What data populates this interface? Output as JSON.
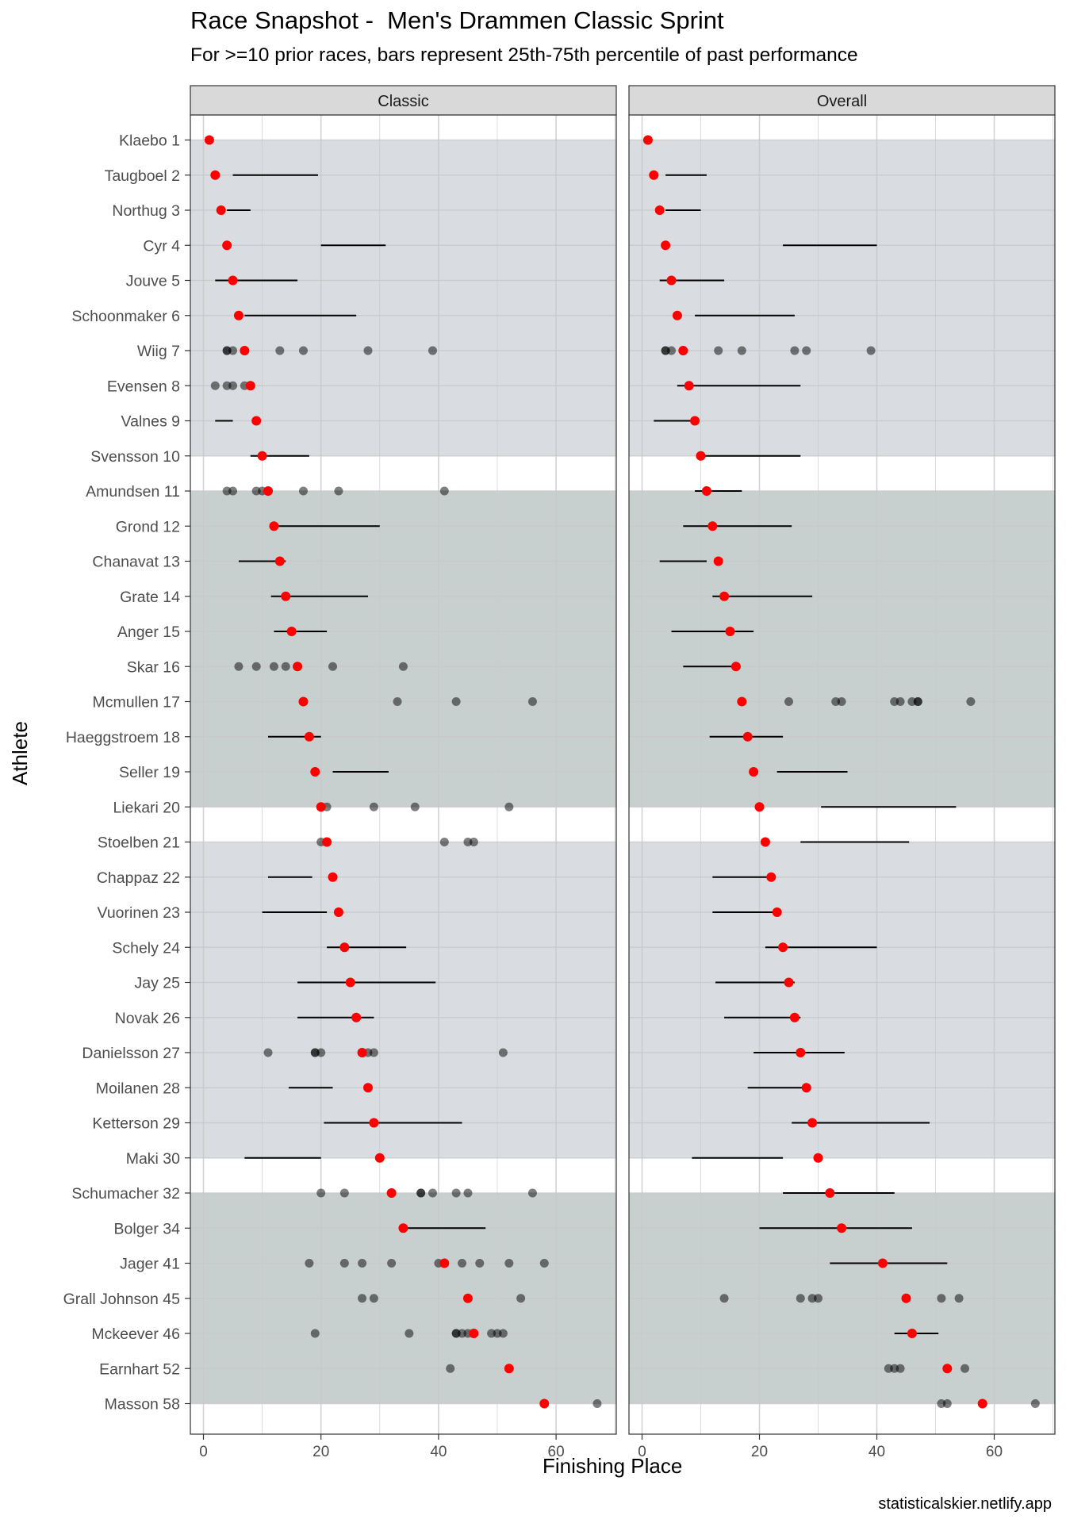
{
  "title": "Race Snapshot -  Men's Drammen Classic Sprint",
  "subtitle": "For >=10 prior races, bars represent 25th-75th percentile of past performance",
  "caption": "statisticalskier.netlify.app",
  "chart_data": {
    "type": "scatter",
    "title": "Race Snapshot -  Men's Drammen Classic Sprint",
    "subtitle": "For >=10 prior races, bars represent 25th-75th percentile of past performance",
    "xlabel": "Finishing Place",
    "ylabel": "Athlete",
    "xlim": [
      -2,
      71
    ],
    "x_ticks": [
      0,
      20,
      40,
      60
    ],
    "grid": true,
    "panels": [
      "Classic",
      "Overall"
    ],
    "colors": {
      "current_place": "#ff0000",
      "past_result": "#000000",
      "group_light": "#d9dce1",
      "group_dark": "#c8d0cf",
      "strip": "#d9d9d9"
    },
    "bands": [
      {
        "from": 0,
        "to": 9,
        "color": "group_light"
      },
      {
        "from": 10,
        "to": 19,
        "color": "group_dark"
      },
      {
        "from": 20,
        "to": 29,
        "color": "group_light"
      },
      {
        "from": 30,
        "to": 36,
        "color": "group_dark"
      }
    ],
    "athletes": [
      {
        "label": "Klaebo 1",
        "place": 1,
        "classic": {
          "bar": null,
          "points": []
        },
        "overall": {
          "bar": null,
          "points": []
        }
      },
      {
        "label": "Taugboel 2",
        "place": 2,
        "classic": {
          "bar": [
            5,
            19.5
          ],
          "points": []
        },
        "overall": {
          "bar": [
            4,
            11
          ],
          "points": []
        }
      },
      {
        "label": "Northug 3",
        "place": 3,
        "classic": {
          "bar": [
            4,
            8
          ],
          "points": []
        },
        "overall": {
          "bar": [
            4,
            10
          ],
          "points": []
        }
      },
      {
        "label": "Cyr 4",
        "place": 4,
        "classic": {
          "bar": [
            20,
            31
          ],
          "points": []
        },
        "overall": {
          "bar": [
            24,
            40
          ],
          "points": []
        }
      },
      {
        "label": "Jouve 5",
        "place": 5,
        "classic": {
          "bar": [
            2,
            16
          ],
          "points": []
        },
        "overall": {
          "bar": [
            3,
            14
          ],
          "points": []
        }
      },
      {
        "label": "Schoonmaker 6",
        "place": 6,
        "classic": {
          "bar": [
            7,
            26
          ],
          "points": []
        },
        "overall": {
          "bar": [
            9,
            26
          ],
          "points": []
        }
      },
      {
        "label": "Wiig 7",
        "place": 7,
        "classic": {
          "bar": null,
          "points": [
            4,
            4,
            5,
            13,
            17,
            28,
            39
          ]
        },
        "overall": {
          "bar": null,
          "points": [
            4,
            4,
            5,
            13,
            17,
            26,
            28,
            39
          ]
        }
      },
      {
        "label": "Evensen 8",
        "place": 8,
        "classic": {
          "bar": null,
          "points": [
            2,
            4,
            5,
            7,
            8
          ]
        },
        "overall": {
          "bar": [
            6,
            27
          ],
          "points": []
        }
      },
      {
        "label": "Valnes 9",
        "place": 9,
        "classic": {
          "bar": [
            2,
            5
          ],
          "points": []
        },
        "overall": {
          "bar": [
            2,
            9
          ],
          "points": []
        }
      },
      {
        "label": "Svensson 10",
        "place": 10,
        "classic": {
          "bar": [
            8,
            18
          ],
          "points": []
        },
        "overall": {
          "bar": [
            10,
            27
          ],
          "points": []
        }
      },
      {
        "label": "Amundsen 11",
        "place": 11,
        "classic": {
          "bar": null,
          "points": [
            4,
            5,
            9,
            10,
            17,
            23,
            41
          ]
        },
        "overall": {
          "bar": [
            9,
            17
          ],
          "points": []
        }
      },
      {
        "label": "Grond 12",
        "place": 12,
        "classic": {
          "bar": [
            12,
            30
          ],
          "points": []
        },
        "overall": {
          "bar": [
            7,
            25.5
          ],
          "points": []
        }
      },
      {
        "label": "Chanavat 13",
        "place": 13,
        "classic": {
          "bar": [
            6,
            14
          ],
          "points": []
        },
        "overall": {
          "bar": [
            3,
            11
          ],
          "points": []
        }
      },
      {
        "label": "Grate 14",
        "place": 14,
        "classic": {
          "bar": [
            11.5,
            28
          ],
          "points": []
        },
        "overall": {
          "bar": [
            12,
            29
          ],
          "points": []
        }
      },
      {
        "label": "Anger 15",
        "place": 15,
        "classic": {
          "bar": [
            12,
            21
          ],
          "points": []
        },
        "overall": {
          "bar": [
            5,
            19
          ],
          "points": []
        }
      },
      {
        "label": "Skar 16",
        "place": 16,
        "classic": {
          "bar": null,
          "points": [
            6,
            9,
            12,
            14,
            22,
            34
          ]
        },
        "overall": {
          "bar": [
            7,
            16
          ],
          "points": []
        }
      },
      {
        "label": "Mcmullen 17",
        "place": 17,
        "classic": {
          "bar": null,
          "points": [
            33,
            43,
            56
          ]
        },
        "overall": {
          "bar": null,
          "points": [
            25,
            33,
            34,
            43,
            44,
            46,
            47,
            47,
            56
          ]
        }
      },
      {
        "label": "Haeggstroem 18",
        "place": 18,
        "classic": {
          "bar": [
            11,
            20
          ],
          "points": []
        },
        "overall": {
          "bar": [
            11.5,
            24
          ],
          "points": []
        }
      },
      {
        "label": "Seller 19",
        "place": 19,
        "classic": {
          "bar": [
            22,
            31.5
          ],
          "points": []
        },
        "overall": {
          "bar": [
            23,
            35
          ],
          "points": []
        }
      },
      {
        "label": "Liekari 20",
        "place": 20,
        "classic": {
          "bar": null,
          "points": [
            21,
            29,
            36,
            52
          ]
        },
        "overall": {
          "bar": [
            30.5,
            53.5
          ],
          "points": []
        }
      },
      {
        "label": "Stoelben 21",
        "place": 21,
        "classic": {
          "bar": null,
          "points": [
            20,
            41,
            45,
            46
          ]
        },
        "overall": {
          "bar": [
            27,
            45.5
          ],
          "points": []
        }
      },
      {
        "label": "Chappaz 22",
        "place": 22,
        "classic": {
          "bar": [
            11,
            18.5
          ],
          "points": []
        },
        "overall": {
          "bar": [
            12,
            22.5
          ],
          "points": []
        }
      },
      {
        "label": "Vuorinen 23",
        "place": 23,
        "classic": {
          "bar": [
            10,
            21
          ],
          "points": []
        },
        "overall": {
          "bar": [
            12,
            23
          ],
          "points": []
        }
      },
      {
        "label": "Schely 24",
        "place": 24,
        "classic": {
          "bar": [
            21,
            34.5
          ],
          "points": []
        },
        "overall": {
          "bar": [
            21,
            40
          ],
          "points": []
        }
      },
      {
        "label": "Jay 25",
        "place": 25,
        "classic": {
          "bar": [
            16,
            39.5
          ],
          "points": []
        },
        "overall": {
          "bar": [
            12.5,
            26
          ],
          "points": []
        }
      },
      {
        "label": "Novak 26",
        "place": 26,
        "classic": {
          "bar": [
            16,
            29
          ],
          "points": []
        },
        "overall": {
          "bar": [
            14,
            27
          ],
          "points": []
        }
      },
      {
        "label": "Danielsson 27",
        "place": 27,
        "classic": {
          "bar": null,
          "points": [
            11,
            19,
            19,
            20,
            28,
            29,
            51
          ]
        },
        "overall": {
          "bar": [
            19,
            34.5
          ],
          "points": []
        }
      },
      {
        "label": "Moilanen 28",
        "place": 28,
        "classic": {
          "bar": [
            14.5,
            22
          ],
          "points": []
        },
        "overall": {
          "bar": [
            18,
            28
          ],
          "points": []
        }
      },
      {
        "label": "Ketterson 29",
        "place": 29,
        "classic": {
          "bar": [
            20.5,
            44
          ],
          "points": []
        },
        "overall": {
          "bar": [
            25.5,
            49
          ],
          "points": []
        }
      },
      {
        "label": "Maki 30",
        "place": 30,
        "classic": {
          "bar": [
            7,
            20
          ],
          "points": []
        },
        "overall": {
          "bar": [
            8.5,
            24
          ],
          "points": []
        }
      },
      {
        "label": "Schumacher 32",
        "place": 32,
        "classic": {
          "bar": null,
          "points": [
            20,
            24,
            37,
            37,
            39,
            43,
            45,
            56
          ]
        },
        "overall": {
          "bar": [
            24,
            43
          ],
          "points": []
        }
      },
      {
        "label": "Bolger 34",
        "place": 34,
        "classic": {
          "bar": [
            34,
            48
          ],
          "points": []
        },
        "overall": {
          "bar": [
            20,
            46
          ],
          "points": []
        }
      },
      {
        "label": "Jager 41",
        "place": 41,
        "classic": {
          "bar": null,
          "points": [
            18,
            24,
            27,
            32,
            40,
            44,
            47,
            52,
            58
          ]
        },
        "overall": {
          "bar": [
            32,
            52
          ],
          "points": []
        }
      },
      {
        "label": "Grall Johnson 45",
        "place": 45,
        "classic": {
          "bar": null,
          "points": [
            27,
            29,
            54
          ]
        },
        "overall": {
          "bar": null,
          "points": [
            14,
            27,
            29,
            30,
            51,
            54
          ]
        }
      },
      {
        "label": "Mckeever 46",
        "place": 46,
        "classic": {
          "bar": null,
          "points": [
            19,
            35,
            43,
            43,
            44,
            45,
            49,
            50,
            51
          ]
        },
        "overall": {
          "bar": [
            43,
            50.5
          ],
          "points": []
        }
      },
      {
        "label": "Earnhart 52",
        "place": 52,
        "classic": {
          "bar": null,
          "points": [
            42
          ]
        },
        "overall": {
          "bar": null,
          "points": [
            42,
            43,
            44,
            55
          ]
        }
      },
      {
        "label": "Masson 58",
        "place": 58,
        "classic": {
          "bar": null,
          "points": [
            67
          ]
        },
        "overall": {
          "bar": null,
          "points": [
            51,
            52,
            67
          ]
        }
      }
    ]
  }
}
